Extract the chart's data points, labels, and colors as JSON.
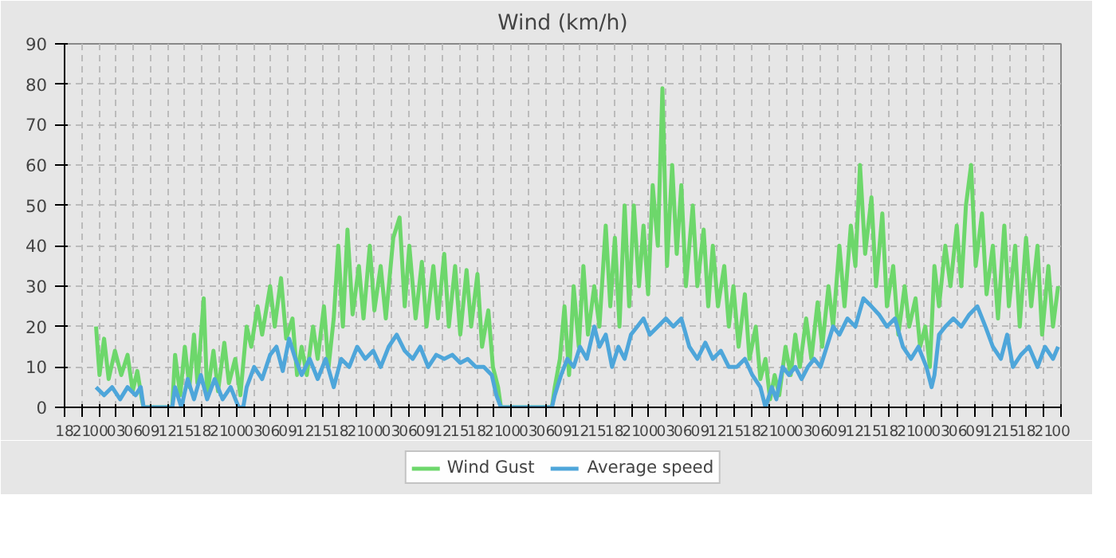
{
  "chart_data": {
    "type": "line",
    "title": "Wind (km/h)",
    "legend": "bottom",
    "grid": true,
    "marker": "none",
    "line_style": "solid",
    "xlim": [
      18,
      192
    ],
    "ylim": [
      0,
      90
    ],
    "yticks": [
      0,
      10,
      20,
      30,
      40,
      50,
      60,
      70,
      80,
      90
    ],
    "xticks": [
      18,
      21,
      {
        "value": 24,
        "label": "00"
      },
      {
        "value": 27,
        "label": "03"
      },
      {
        "value": 30,
        "label": "06"
      },
      {
        "value": 33,
        "label": "09"
      },
      {
        "value": 36,
        "label": "12"
      },
      {
        "value": 39,
        "label": "15"
      },
      {
        "value": 42,
        "label": "18"
      },
      {
        "value": 45,
        "label": "21"
      },
      {
        "value": 48,
        "label": "00"
      },
      {
        "value": 51,
        "label": "03"
      },
      {
        "value": 54,
        "label": "06"
      },
      {
        "value": 57,
        "label": "09"
      },
      {
        "value": 60,
        "label": "12"
      },
      {
        "value": 63,
        "label": "15"
      },
      {
        "value": 66,
        "label": "18"
      },
      {
        "value": 69,
        "label": "21"
      },
      {
        "value": 72,
        "label": "00"
      },
      {
        "value": 75,
        "label": "03"
      },
      {
        "value": 78,
        "label": "06"
      },
      {
        "value": 81,
        "label": "09"
      },
      {
        "value": 84,
        "label": "12"
      },
      {
        "value": 87,
        "label": "15"
      },
      {
        "value": 90,
        "label": "18"
      },
      {
        "value": 93,
        "label": "21"
      },
      {
        "value": 96,
        "label": "00"
      },
      {
        "value": 99,
        "label": "03"
      },
      {
        "value": 102,
        "label": "06"
      },
      {
        "value": 105,
        "label": "09"
      },
      {
        "value": 108,
        "label": "12"
      },
      {
        "value": 111,
        "label": "15"
      },
      {
        "value": 114,
        "label": "18"
      },
      {
        "value": 117,
        "label": "21"
      },
      {
        "value": 120,
        "label": "00"
      },
      {
        "value": 123,
        "label": "03"
      },
      {
        "value": 126,
        "label": "06"
      },
      {
        "value": 129,
        "label": "09"
      },
      {
        "value": 132,
        "label": "12"
      },
      {
        "value": 135,
        "label": "15"
      },
      {
        "value": 138,
        "label": "18"
      },
      {
        "value": 141,
        "label": "21"
      },
      {
        "value": 144,
        "label": "00"
      },
      {
        "value": 147,
        "label": "03"
      },
      {
        "value": 150,
        "label": "06"
      },
      {
        "value": 153,
        "label": "09"
      },
      {
        "value": 156,
        "label": "12"
      },
      {
        "value": 159,
        "label": "15"
      },
      {
        "value": 162,
        "label": "18"
      },
      {
        "value": 165,
        "label": "21"
      },
      {
        "value": 168,
        "label": "00"
      },
      {
        "value": 171,
        "label": "03"
      },
      {
        "value": 174,
        "label": "06"
      },
      {
        "value": 177,
        "label": "09"
      },
      {
        "value": 180,
        "label": "12"
      },
      {
        "value": 183,
        "label": "15"
      },
      {
        "value": 186,
        "label": "18"
      },
      {
        "value": 189,
        "label": "21"
      },
      {
        "value": 192,
        "label": "00"
      }
    ],
    "series": [
      {
        "name": "Wind Gust",
        "color": "#6dd76b",
        "x": [
          23.5,
          24.1,
          24.9,
          25.7,
          26.8,
          27.9,
          29.0,
          29.9,
          30.7,
          31.5,
          31.8,
          36.8,
          37.3,
          38.2,
          39.0,
          39.8,
          40.6,
          41.2,
          42.3,
          42.9,
          44.0,
          44.8,
          45.9,
          46.7,
          47.8,
          48.7,
          49.8,
          50.6,
          51.7,
          52.5,
          53.9,
          54.7,
          55.8,
          56.7,
          57.8,
          58.6,
          59.4,
          60.3,
          61.4,
          62.2,
          63.3,
          64.1,
          65.0,
          65.8,
          66.6,
          67.4,
          68.3,
          69.4,
          70.2,
          71.3,
          72.1,
          73.2,
          74.1,
          75.4,
          76.5,
          77.4,
          78.2,
          79.3,
          80.4,
          81.2,
          82.4,
          83.2,
          84.3,
          85.1,
          86.2,
          87.1,
          88.2,
          89.0,
          90.1,
          90.9,
          92.0,
          92.8,
          93.7,
          94.2,
          103.1,
          103.6,
          104.5,
          105.3,
          106.1,
          106.9,
          107.8,
          108.6,
          109.4,
          110.5,
          111.4,
          112.5,
          113.3,
          114.1,
          114.9,
          115.8,
          116.6,
          117.4,
          118.3,
          119.1,
          119.9,
          120.7,
          121.6,
          122.4,
          123.2,
          124.1,
          124.9,
          125.7,
          126.5,
          127.7,
          128.5,
          129.6,
          130.4,
          131.2,
          132.1,
          133.2,
          134.0,
          134.8,
          135.7,
          136.8,
          137.6,
          138.7,
          139.5,
          140.4,
          141.2,
          142.0,
          142.8,
          143.9,
          144.8,
          145.6,
          146.4,
          147.5,
          148.4,
          149.5,
          150.3,
          151.4,
          152.2,
          153.3,
          154.2,
          155.3,
          156.1,
          156.9,
          157.8,
          158.9,
          159.7,
          160.8,
          161.6,
          162.7,
          163.6,
          164.7,
          165.5,
          166.6,
          167.4,
          168.3,
          169.1,
          169.9,
          170.7,
          171.8,
          172.7,
          173.8,
          174.6,
          175.4,
          176.3,
          177.1,
          178.2,
          179.0,
          180.1,
          181.0,
          182.1,
          182.9,
          184.0,
          184.8,
          185.9,
          186.8,
          187.9,
          188.7,
          189.8,
          190.6,
          191.5
        ],
        "values": [
          20,
          8,
          17,
          7,
          14,
          8,
          13,
          4,
          9,
          2,
          0,
          0,
          13,
          3,
          15,
          5,
          18,
          6,
          27,
          3,
          14,
          4,
          16,
          6,
          12,
          3,
          20,
          15,
          25,
          18,
          30,
          20,
          32,
          17,
          22,
          8,
          15,
          8,
          20,
          12,
          25,
          10,
          22,
          40,
          20,
          44,
          23,
          35,
          22,
          40,
          24,
          35,
          22,
          42,
          47,
          25,
          40,
          22,
          36,
          20,
          35,
          22,
          38,
          20,
          35,
          18,
          34,
          20,
          33,
          15,
          24,
          10,
          5,
          0,
          0,
          5,
          12,
          25,
          8,
          30,
          15,
          35,
          18,
          30,
          20,
          45,
          25,
          42,
          20,
          50,
          25,
          50,
          30,
          45,
          28,
          55,
          40,
          79,
          35,
          60,
          38,
          55,
          30,
          50,
          30,
          44,
          25,
          40,
          25,
          35,
          20,
          30,
          15,
          28,
          12,
          20,
          7,
          12,
          2,
          8,
          3,
          15,
          8,
          18,
          10,
          22,
          12,
          26,
          15,
          30,
          20,
          40,
          25,
          45,
          35,
          60,
          38,
          52,
          30,
          48,
          25,
          35,
          18,
          30,
          20,
          27,
          15,
          20,
          10,
          35,
          25,
          40,
          30,
          45,
          30,
          50,
          60,
          35,
          48,
          28,
          40,
          22,
          45,
          25,
          40,
          20,
          42,
          25,
          40,
          18,
          35,
          20,
          30
        ]
      },
      {
        "name": "Average speed",
        "color": "#4ea6da",
        "x": [
          23.5,
          24.9,
          26.3,
          27.7,
          29.0,
          30.4,
          31.3,
          31.8,
          36.8,
          37.3,
          38.4,
          39.5,
          40.6,
          41.8,
          42.9,
          44.2,
          45.6,
          47.0,
          48.4,
          49.2,
          49.8,
          51.1,
          52.5,
          53.9,
          55.0,
          56.1,
          57.2,
          58.3,
          59.4,
          60.8,
          62.2,
          63.6,
          65.0,
          66.3,
          67.7,
          69.1,
          70.5,
          71.9,
          73.2,
          74.6,
          76.0,
          77.4,
          78.8,
          80.1,
          81.5,
          82.9,
          84.3,
          85.7,
          87.1,
          88.4,
          89.8,
          91.2,
          92.6,
          93.4,
          94.2,
          103.1,
          103.6,
          104.7,
          105.8,
          106.9,
          108.0,
          109.2,
          110.5,
          111.4,
          112.5,
          113.6,
          114.7,
          115.8,
          116.9,
          118.0,
          119.1,
          120.2,
          121.6,
          123.0,
          124.3,
          125.7,
          127.1,
          128.5,
          129.9,
          131.2,
          132.6,
          134.0,
          135.4,
          136.8,
          138.1,
          139.5,
          140.4,
          141.5,
          142.3,
          143.4,
          144.5,
          145.6,
          146.7,
          147.8,
          148.9,
          150.0,
          151.1,
          152.2,
          153.3,
          154.7,
          156.1,
          157.5,
          158.9,
          160.2,
          161.6,
          163.0,
          164.4,
          165.8,
          167.1,
          168.5,
          169.4,
          169.9,
          170.7,
          171.8,
          173.2,
          174.6,
          176.0,
          177.4,
          178.8,
          180.1,
          181.5,
          182.6,
          183.6,
          185.0,
          186.4,
          187.9,
          189.2,
          190.6,
          191.5
        ],
        "values": [
          5,
          3,
          5,
          2,
          5,
          3,
          5,
          0,
          0,
          5,
          0,
          7,
          2,
          8,
          2,
          7,
          2,
          5,
          0,
          0,
          5,
          10,
          7,
          13,
          15,
          9,
          17,
          12,
          8,
          12,
          7,
          12,
          5,
          12,
          10,
          15,
          12,
          14,
          10,
          15,
          18,
          14,
          12,
          15,
          10,
          13,
          12,
          13,
          11,
          12,
          10,
          10,
          8,
          3,
          0,
          0,
          3,
          8,
          12,
          10,
          15,
          12,
          20,
          15,
          18,
          10,
          15,
          12,
          18,
          20,
          22,
          18,
          20,
          22,
          20,
          22,
          15,
          12,
          16,
          12,
          14,
          10,
          10,
          12,
          8,
          5,
          0,
          5,
          2,
          10,
          8,
          10,
          7,
          10,
          12,
          10,
          15,
          20,
          18,
          22,
          20,
          27,
          25,
          23,
          20,
          22,
          15,
          12,
          15,
          10,
          5,
          8,
          18,
          20,
          22,
          20,
          23,
          25,
          20,
          15,
          12,
          18,
          10,
          13,
          15,
          10,
          15,
          12,
          15
        ]
      }
    ]
  }
}
